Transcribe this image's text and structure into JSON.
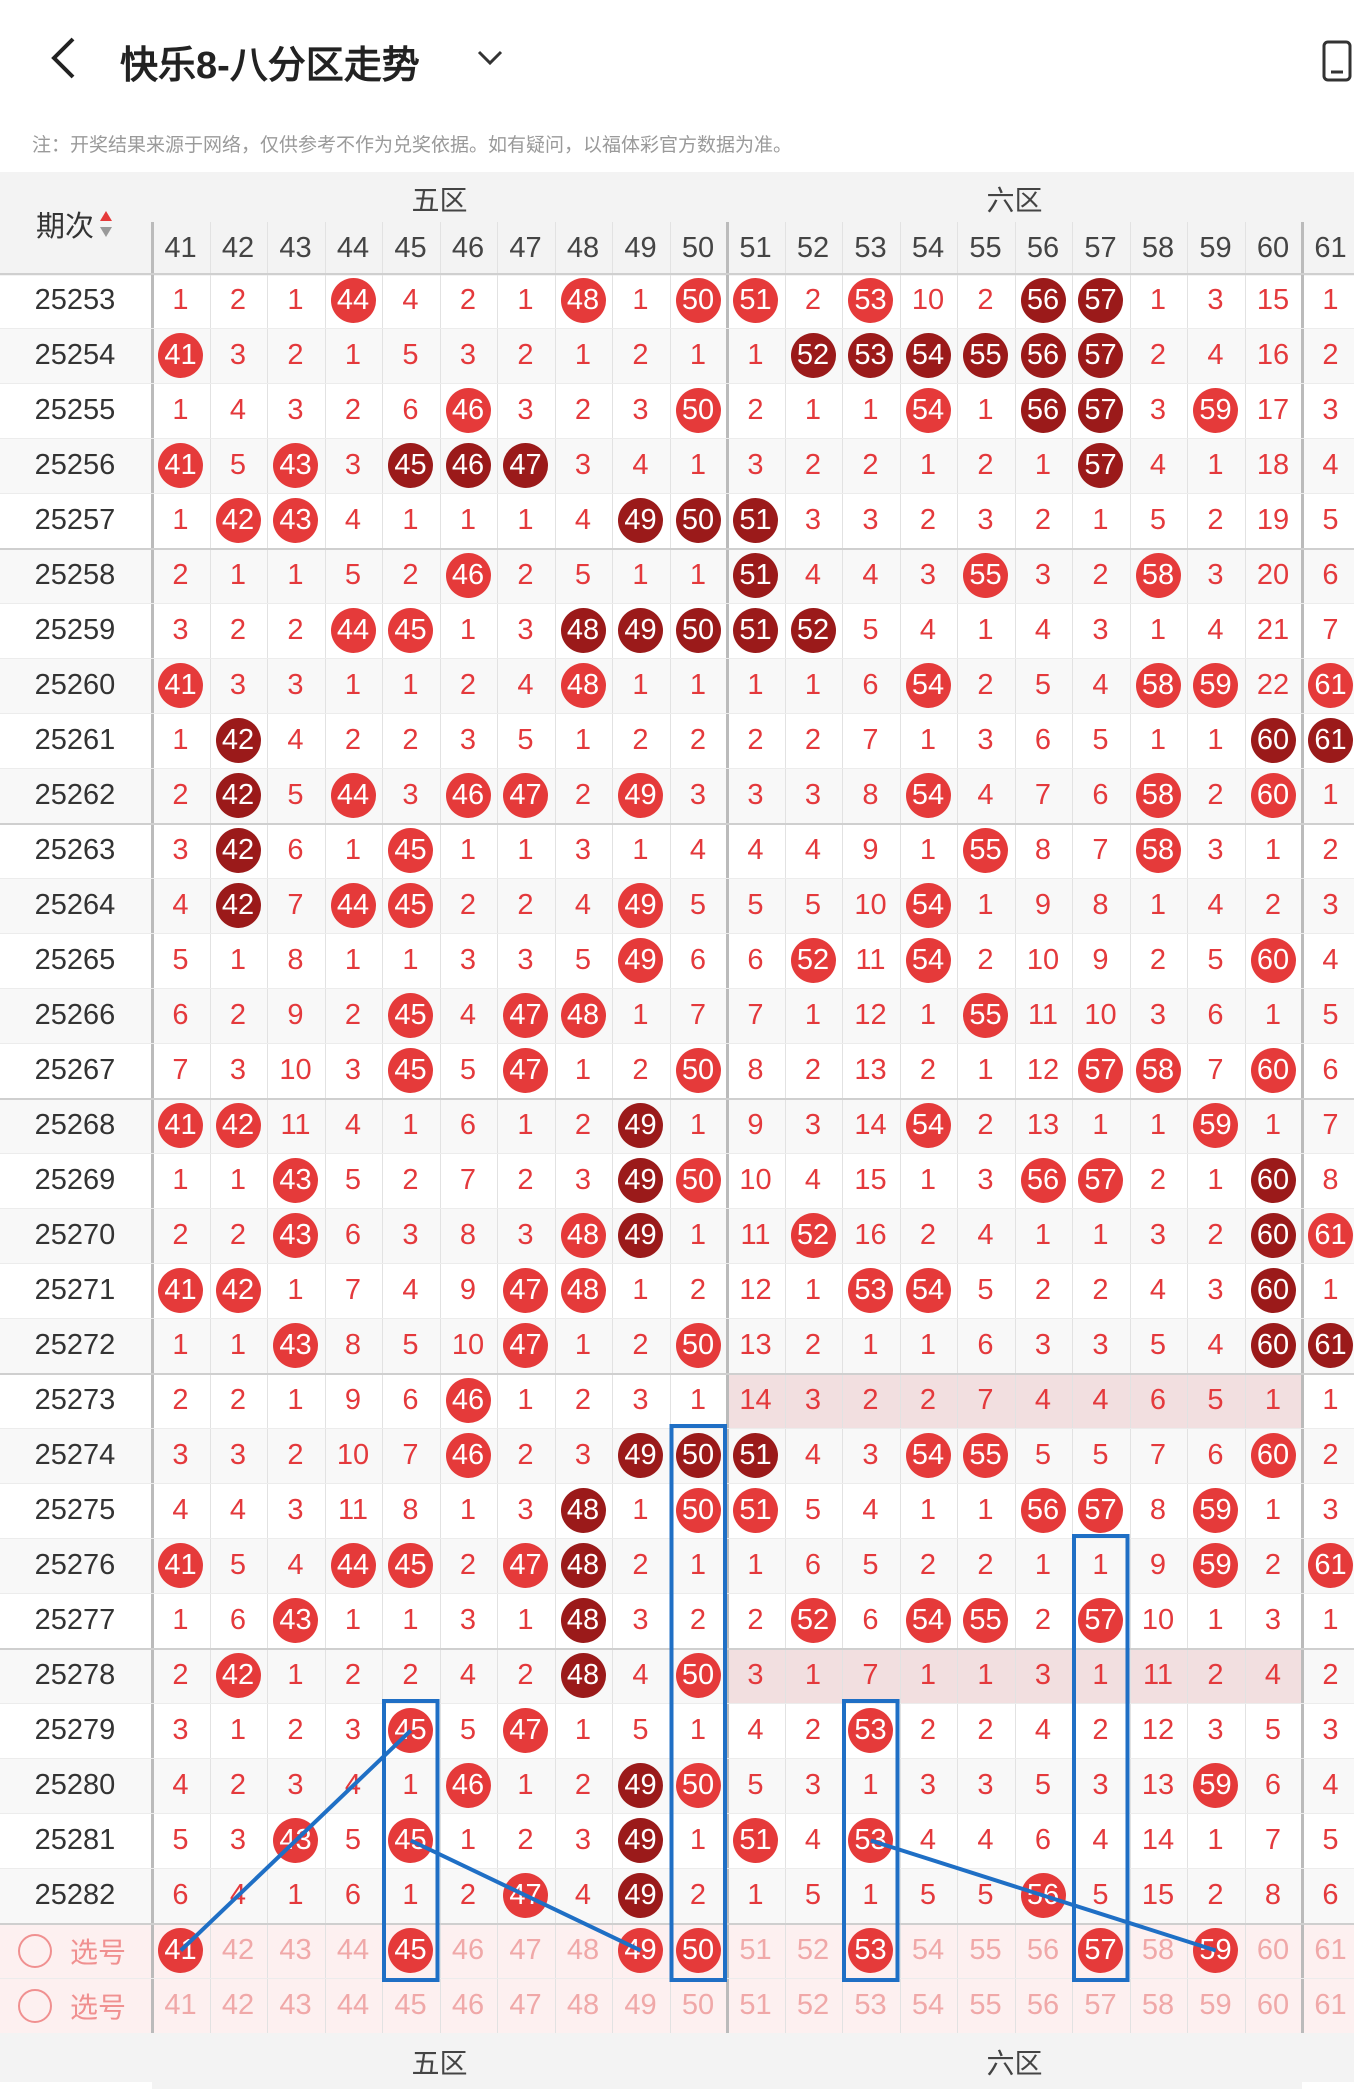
{
  "header": {
    "title": "快乐8-八分区走势"
  },
  "note": "注：开奖结果来源于网络，仅供参考不作为兑奖依据。如有疑问，以福体彩官方数据为准。",
  "table": {
    "period_header": "期次",
    "zones": [
      "五区",
      "六区"
    ],
    "columns": [
      41,
      42,
      43,
      44,
      45,
      46,
      47,
      48,
      49,
      50,
      51,
      52,
      53,
      54,
      55,
      56,
      57,
      58,
      59,
      60,
      61
    ],
    "select_label": "选号",
    "rows": [
      {
        "p": "25253",
        "v": [
          1,
          2,
          1,
          "44r",
          4,
          2,
          1,
          "48r",
          1,
          "50r",
          "51r",
          2,
          "53r",
          10,
          2,
          "56d",
          "57d",
          1,
          3,
          15,
          1
        ]
      },
      {
        "p": "25254",
        "v": [
          "41r",
          3,
          2,
          1,
          5,
          3,
          2,
          1,
          2,
          1,
          1,
          "52d",
          "53d",
          "54d",
          "55d",
          "56d",
          "57d",
          2,
          4,
          16,
          2
        ]
      },
      {
        "p": "25255",
        "v": [
          1,
          4,
          3,
          2,
          6,
          "46r",
          3,
          2,
          3,
          "50r",
          2,
          1,
          1,
          "54r",
          1,
          "56d",
          "57d",
          3,
          "59r",
          17,
          3
        ]
      },
      {
        "p": "25256",
        "v": [
          "41r",
          5,
          "43r",
          3,
          "45d",
          "46d",
          "47d",
          3,
          4,
          1,
          3,
          2,
          2,
          1,
          2,
          1,
          "57d",
          4,
          1,
          18,
          4
        ]
      },
      {
        "p": "25257",
        "v": [
          1,
          "42r",
          "43r",
          4,
          1,
          1,
          1,
          4,
          "49d",
          "50d",
          "51d",
          3,
          3,
          2,
          3,
          2,
          1,
          5,
          2,
          19,
          5
        ]
      },
      {
        "p": "25258",
        "v": [
          2,
          1,
          1,
          5,
          2,
          "46r",
          2,
          5,
          1,
          1,
          "51d",
          4,
          4,
          3,
          "55r",
          3,
          2,
          "58r",
          3,
          20,
          6
        ]
      },
      {
        "p": "25259",
        "v": [
          3,
          2,
          2,
          "44r",
          "45r",
          1,
          3,
          "48d",
          "49d",
          "50d",
          "51d",
          "52d",
          5,
          4,
          1,
          4,
          3,
          1,
          4,
          21,
          7
        ]
      },
      {
        "p": "25260",
        "v": [
          "41r",
          3,
          3,
          1,
          1,
          2,
          4,
          "48r",
          1,
          1,
          1,
          1,
          6,
          "54r",
          2,
          5,
          4,
          "58r",
          "59r",
          22,
          "61r"
        ]
      },
      {
        "p": "25261",
        "v": [
          1,
          "42d",
          4,
          2,
          2,
          3,
          5,
          1,
          2,
          2,
          2,
          2,
          7,
          1,
          3,
          6,
          5,
          1,
          1,
          "60d",
          "61d"
        ]
      },
      {
        "p": "25262",
        "v": [
          2,
          "42d",
          5,
          "44r",
          3,
          "46r",
          "47r",
          2,
          "49r",
          3,
          3,
          3,
          8,
          "54r",
          4,
          7,
          6,
          "58r",
          2,
          "60r",
          1
        ]
      },
      {
        "p": "25263",
        "v": [
          3,
          "42d",
          6,
          1,
          "45r",
          1,
          1,
          3,
          1,
          4,
          4,
          4,
          9,
          1,
          "55r",
          8,
          7,
          "58r",
          3,
          1,
          2
        ]
      },
      {
        "p": "25264",
        "v": [
          4,
          "42d",
          7,
          "44r",
          "45r",
          2,
          2,
          4,
          "49r",
          5,
          5,
          5,
          10,
          "54r",
          1,
          9,
          8,
          1,
          4,
          2,
          3
        ]
      },
      {
        "p": "25265",
        "v": [
          5,
          1,
          8,
          1,
          1,
          3,
          3,
          5,
          "49r",
          6,
          6,
          "52r",
          11,
          "54r",
          2,
          10,
          9,
          2,
          5,
          "60r",
          4
        ]
      },
      {
        "p": "25266",
        "v": [
          6,
          2,
          9,
          2,
          "45r",
          4,
          "47r",
          "48r",
          1,
          7,
          7,
          1,
          12,
          1,
          "55r",
          11,
          10,
          3,
          6,
          1,
          5
        ]
      },
      {
        "p": "25267",
        "v": [
          7,
          3,
          10,
          3,
          "45r",
          5,
          "47r",
          1,
          2,
          "50r",
          8,
          2,
          13,
          2,
          1,
          12,
          "57r",
          "58r",
          7,
          "60r",
          6
        ]
      },
      {
        "p": "25268",
        "v": [
          "41r",
          "42r",
          11,
          4,
          1,
          6,
          1,
          2,
          "49d",
          1,
          9,
          3,
          14,
          "54r",
          2,
          13,
          1,
          1,
          "59r",
          1,
          7
        ]
      },
      {
        "p": "25269",
        "v": [
          1,
          1,
          "43r",
          5,
          2,
          7,
          2,
          3,
          "49d",
          "50r",
          10,
          4,
          15,
          1,
          3,
          "56r",
          "57r",
          2,
          1,
          "60d",
          8
        ]
      },
      {
        "p": "25270",
        "v": [
          2,
          2,
          "43r",
          6,
          3,
          8,
          3,
          "48r",
          "49d",
          1,
          11,
          "52r",
          16,
          2,
          4,
          1,
          1,
          3,
          2,
          "60d",
          "61r"
        ]
      },
      {
        "p": "25271",
        "v": [
          "41r",
          "42r",
          1,
          7,
          4,
          9,
          "47r",
          "48r",
          1,
          2,
          12,
          1,
          "53r",
          "54r",
          5,
          2,
          2,
          4,
          3,
          "60d",
          1
        ]
      },
      {
        "p": "25272",
        "v": [
          1,
          1,
          "43r",
          8,
          5,
          10,
          "47r",
          1,
          2,
          "50r",
          13,
          2,
          1,
          1,
          6,
          3,
          3,
          5,
          4,
          "60d",
          "61d"
        ]
      },
      {
        "p": "25273",
        "v": [
          2,
          2,
          1,
          9,
          6,
          "46r",
          1,
          2,
          3,
          1,
          14,
          3,
          2,
          2,
          7,
          4,
          4,
          6,
          5,
          1,
          1
        ]
      },
      {
        "p": "25274",
        "v": [
          3,
          3,
          2,
          10,
          7,
          "46r",
          2,
          3,
          "49d",
          "50d",
          "51d",
          4,
          3,
          "54r",
          "55r",
          5,
          5,
          7,
          6,
          "60r",
          2
        ]
      },
      {
        "p": "25275",
        "v": [
          4,
          4,
          3,
          11,
          8,
          1,
          3,
          "48d",
          1,
          "50r",
          "51r",
          5,
          4,
          1,
          1,
          "56r",
          "57r",
          8,
          "59r",
          1,
          3
        ]
      },
      {
        "p": "25276",
        "v": [
          "41r",
          5,
          4,
          "44r",
          "45r",
          2,
          "47r",
          "48d",
          2,
          1,
          1,
          6,
          5,
          2,
          2,
          1,
          1,
          9,
          "59r",
          2,
          "61r"
        ]
      },
      {
        "p": "25277",
        "v": [
          1,
          6,
          "43r",
          1,
          1,
          3,
          1,
          "48d",
          3,
          2,
          2,
          "52r",
          6,
          "54r",
          "55r",
          2,
          "57r",
          10,
          1,
          3,
          1
        ]
      },
      {
        "p": "25278",
        "v": [
          2,
          "42r",
          1,
          2,
          2,
          4,
          2,
          "48d",
          4,
          "50r",
          3,
          1,
          7,
          1,
          1,
          3,
          1,
          11,
          2,
          4,
          2
        ]
      },
      {
        "p": "25279",
        "v": [
          3,
          1,
          2,
          3,
          "45r",
          5,
          "47r",
          1,
          5,
          1,
          4,
          2,
          "53r",
          2,
          2,
          4,
          2,
          12,
          3,
          5,
          3
        ]
      },
      {
        "p": "25280",
        "v": [
          4,
          2,
          3,
          4,
          1,
          "46r",
          1,
          2,
          "49d",
          "50r",
          5,
          3,
          1,
          3,
          3,
          5,
          3,
          13,
          "59r",
          6,
          4
        ]
      },
      {
        "p": "25281",
        "v": [
          5,
          3,
          "43r",
          5,
          "45r",
          1,
          2,
          3,
          "49d",
          1,
          "51r",
          4,
          "53r",
          4,
          4,
          6,
          4,
          14,
          1,
          7,
          5
        ]
      },
      {
        "p": "25282",
        "v": [
          6,
          4,
          1,
          6,
          1,
          2,
          "47r",
          4,
          "49d",
          2,
          1,
          5,
          1,
          5,
          5,
          "56r",
          5,
          15,
          2,
          8,
          6
        ]
      }
    ],
    "select_rows": [
      {
        "label": "选号",
        "picked": [
          41,
          45,
          49,
          50,
          53,
          57,
          59
        ]
      },
      {
        "label": "选号",
        "picked": []
      }
    ]
  },
  "colors": {
    "ball_red": "#e53a3a",
    "ball_dark": "#9b1a1a",
    "number_red": "#e4393c",
    "highlight_blue": "#1f6fc5"
  }
}
